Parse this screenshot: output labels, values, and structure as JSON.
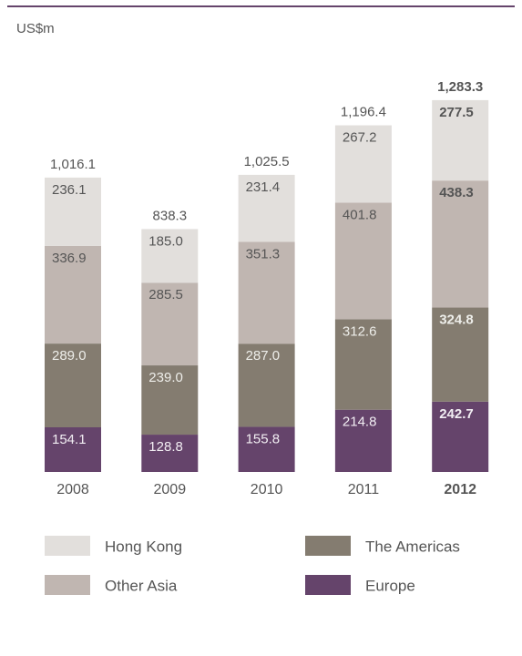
{
  "chart_data": {
    "type": "stacked_bar",
    "unit": "US$m",
    "categories": [
      "2008",
      "2009",
      "2010",
      "2011",
      "2012"
    ],
    "series": [
      {
        "name": "Europe",
        "color": "#65446b",
        "values": [
          154.1,
          128.8,
          155.8,
          214.8,
          242.7
        ],
        "value_labels": [
          "154.1",
          "128.8",
          "155.8",
          "214.8",
          "242.7"
        ]
      },
      {
        "name": "The Americas",
        "color": "#847c70",
        "values": [
          289.0,
          239.0,
          287.0,
          312.6,
          324.8
        ],
        "value_labels": [
          "289.0",
          "239.0",
          "287.0",
          "312.6",
          "324.8"
        ]
      },
      {
        "name": "Other Asia",
        "color": "#c0b6b1",
        "values": [
          336.9,
          285.5,
          351.3,
          401.8,
          438.3
        ],
        "value_labels": [
          "336.9",
          "285.5",
          "351.3",
          "401.8",
          "438.3"
        ]
      },
      {
        "name": "Hong Kong",
        "color": "#e2dfdc",
        "values": [
          236.1,
          185.0,
          231.4,
          267.2,
          277.5
        ],
        "value_labels": [
          "236.1",
          "185.0",
          "231.4",
          "267.2",
          "277.5"
        ]
      }
    ],
    "totals": {
      "values": [
        1016.1,
        838.3,
        1025.5,
        1196.4,
        1283.3
      ],
      "value_labels": [
        "1,016.1",
        "838.3",
        "1,025.5",
        "1,196.4",
        "1,283.3"
      ]
    }
  }
}
